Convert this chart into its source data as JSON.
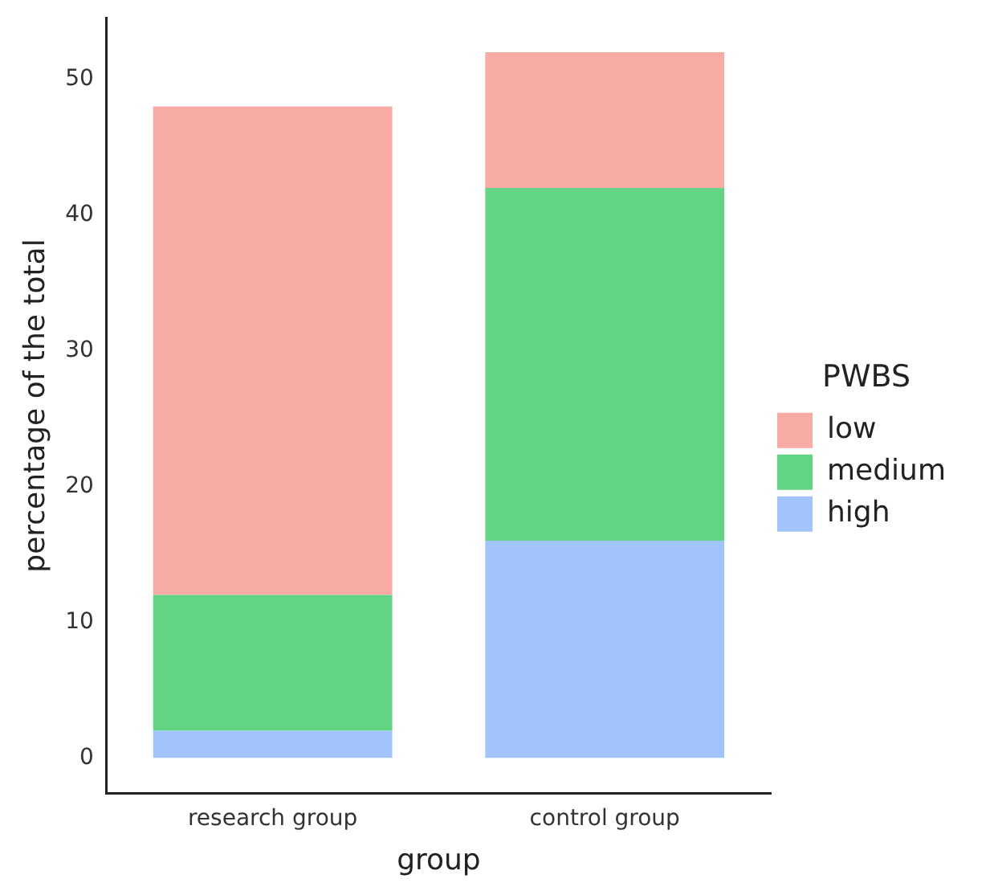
{
  "chart_data": {
    "type": "bar",
    "stacked": true,
    "xlabel": "group",
    "ylabel": "percentage of the total",
    "legend_title": "PWBS",
    "legend": "right",
    "grid": false,
    "categories": [
      "research group",
      "control group"
    ],
    "ylim": [
      -2.6,
      54.5
    ],
    "yticks": [
      0,
      10,
      20,
      30,
      40,
      50
    ],
    "series": [
      {
        "name": "high",
        "color": "#a0c4fb",
        "values": [
          2,
          16
        ]
      },
      {
        "name": "medium",
        "color": "#63d384",
        "values": [
          10,
          26
        ]
      },
      {
        "name": "low",
        "color": "#f8aaa5",
        "values": [
          36,
          10
        ]
      }
    ]
  }
}
